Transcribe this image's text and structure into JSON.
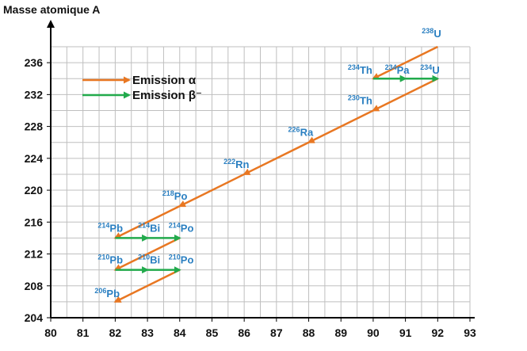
{
  "chart_data": {
    "type": "line",
    "ylabel": "Masse atomique A",
    "xlabel": "",
    "xlim": [
      80,
      93
    ],
    "ylim": [
      204,
      238
    ],
    "x_ticks": [
      80,
      81,
      82,
      83,
      84,
      85,
      86,
      87,
      88,
      89,
      90,
      91,
      92,
      93
    ],
    "y_ticks": [
      204,
      208,
      212,
      216,
      220,
      224,
      228,
      232,
      236
    ],
    "grid": true,
    "legend": {
      "placement": "top-left",
      "entries": [
        {
          "label": "Emission α",
          "color": "#e87722"
        },
        {
          "label": "Emission β⁻",
          "color": "#22aa4c"
        }
      ]
    },
    "series": [
      {
        "name": "Emission α",
        "color": "#e87722",
        "segments": [
          [
            [
              92,
              238
            ],
            [
              90,
              234
            ]
          ],
          [
            [
              92,
              234
            ],
            [
              90,
              230
            ]
          ],
          [
            [
              90,
              230
            ],
            [
              88,
              226
            ]
          ],
          [
            [
              88,
              226
            ],
            [
              86,
              222
            ]
          ],
          [
            [
              86,
              222
            ],
            [
              84,
              218
            ]
          ],
          [
            [
              84,
              218
            ],
            [
              82,
              214
            ]
          ],
          [
            [
              84,
              214
            ],
            [
              82,
              210
            ]
          ],
          [
            [
              84,
              210
            ],
            [
              82,
              206
            ]
          ]
        ]
      },
      {
        "name": "Emission β⁻",
        "color": "#22aa4c",
        "segments": [
          [
            [
              90,
              234
            ],
            [
              91,
              234
            ]
          ],
          [
            [
              91,
              234
            ],
            [
              92,
              234
            ]
          ],
          [
            [
              82,
              214
            ],
            [
              83,
              214
            ]
          ],
          [
            [
              83,
              214
            ],
            [
              84,
              214
            ]
          ],
          [
            [
              82,
              210
            ],
            [
              83,
              210
            ]
          ],
          [
            [
              83,
              210
            ],
            [
              84,
              210
            ]
          ]
        ]
      }
    ],
    "nuclide_labels": [
      {
        "mass": "238",
        "symbol": "U",
        "x": 92,
        "y": 238
      },
      {
        "mass": "234",
        "symbol": "Th",
        "x": 90,
        "y": 234
      },
      {
        "mass": "234",
        "symbol": "Pa",
        "x": 91,
        "y": 234
      },
      {
        "mass": "234",
        "symbol": "U",
        "x": 92,
        "y": 234
      },
      {
        "mass": "230",
        "symbol": "Th",
        "x": 90,
        "y": 230
      },
      {
        "mass": "226",
        "symbol": "Ra",
        "x": 88,
        "y": 226
      },
      {
        "mass": "222",
        "symbol": "Rn",
        "x": 86,
        "y": 222
      },
      {
        "mass": "218",
        "symbol": "Po",
        "x": 84,
        "y": 218
      },
      {
        "mass": "214",
        "symbol": "Pb",
        "x": 82,
        "y": 214
      },
      {
        "mass": "214",
        "symbol": "Bi",
        "x": 83,
        "y": 214
      },
      {
        "mass": "214",
        "symbol": "Po",
        "x": 84,
        "y": 214
      },
      {
        "mass": "210",
        "symbol": "Pb",
        "x": 82,
        "y": 210
      },
      {
        "mass": "210",
        "symbol": "Bi",
        "x": 83,
        "y": 210
      },
      {
        "mass": "210",
        "symbol": "Po",
        "x": 84,
        "y": 210
      },
      {
        "mass": "206",
        "symbol": "Pb",
        "x": 82,
        "y": 206
      }
    ],
    "colors": {
      "label": "#2a7fc1",
      "grid": "#bfbfbf",
      "axis": "#000000"
    }
  }
}
